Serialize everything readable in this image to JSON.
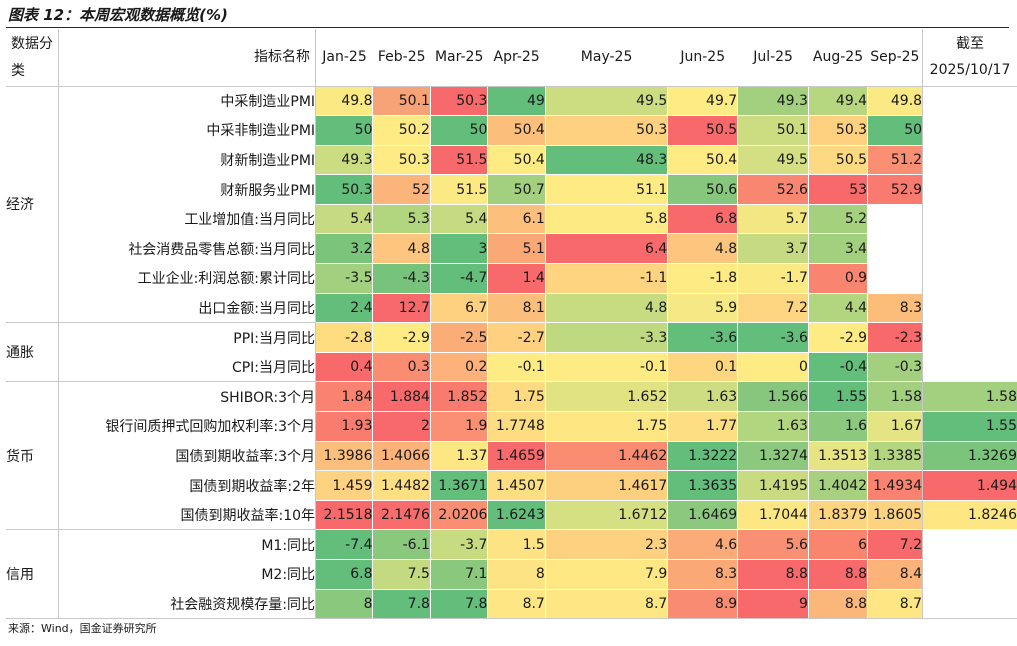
{
  "title": "图表 12：本周宏观数据概览(%)",
  "source": "来源：Wind，国金证券研究所",
  "chart_data": {
    "type": "table",
    "header": {
      "category": "数据分类",
      "indicator": "指标名称",
      "months": [
        "Jan-25",
        "Feb-25",
        "Mar-25",
        "Apr-25",
        "May-25",
        "Jun-25",
        "Jul-25",
        "Aug-25",
        "Sep-25"
      ],
      "latest": "截至 2025/10/17"
    },
    "groups": [
      {
        "name": "经济",
        "rows": [
          {
            "name": "中采制造业PMI",
            "values": [
              "49.8",
              "50.1",
              "50.3",
              "49",
              "49.5",
              "49.7",
              "49.3",
              "49.4",
              "49.8"
            ],
            "latest": "",
            "colors": [
              "#fbe983",
              "#f8a277",
              "#f8696b",
              "#63be7b",
              "#cbdc81",
              "#feeb84",
              "#a2d07f",
              "#b7d680",
              "#fbe983"
            ]
          },
          {
            "name": "中采非制造业PMI",
            "values": [
              "50",
              "50.2",
              "50",
              "50.4",
              "50.3",
              "50.5",
              "50.1",
              "50.3",
              "50"
            ],
            "latest": "",
            "colors": [
              "#63be7b",
              "#feeb84",
              "#63be7b",
              "#fcbf7b",
              "#fdd17f",
              "#f8696b",
              "#cbdc81",
              "#fdd17f",
              "#63be7b"
            ]
          },
          {
            "name": "财新制造业PMI",
            "values": [
              "49.3",
              "50.3",
              "51.5",
              "50.4",
              "48.3",
              "50.4",
              "49.5",
              "50.5",
              "51.2"
            ],
            "latest": "",
            "colors": [
              "#cbdc81",
              "#feeb84",
              "#f8696b",
              "#feeb84",
              "#63be7b",
              "#feeb84",
              "#d3df82",
              "#fdda81",
              "#fa8f73"
            ]
          },
          {
            "name": "财新服务业PMI",
            "values": [
              "50.3",
              "52",
              "51.5",
              "50.7",
              "51.1",
              "50.6",
              "52.6",
              "53",
              "52.9"
            ],
            "latest": "",
            "colors": [
              "#63be7b",
              "#fbb479",
              "#fbe983",
              "#a2d07f",
              "#feeb84",
              "#86c77d",
              "#f98670",
              "#f8696b",
              "#f97a6e"
            ]
          },
          {
            "name": "工业增加值:当月同比",
            "values": [
              "5.4",
              "5.3",
              "5.4",
              "6.1",
              "5.8",
              "6.8",
              "5.7",
              "5.2",
              ""
            ],
            "latest": "",
            "colors": [
              "#c5da81",
              "#b2d580",
              "#c5da81",
              "#fcc07c",
              "#feea83",
              "#f8696b",
              "#f2e783",
              "#a5d17f",
              ""
            ]
          },
          {
            "name": "社会消费品零售总额:当月同比",
            "values": [
              "3.2",
              "4.8",
              "3",
              "5.1",
              "6.4",
              "4.8",
              "3.7",
              "3.4",
              ""
            ],
            "latest": "",
            "colors": [
              "#7ac47c",
              "#fdc57d",
              "#63be7b",
              "#fba877",
              "#f8696b",
              "#fdc57d",
              "#c6da81",
              "#a2d07f",
              ""
            ]
          },
          {
            "name": "工业企业:利润总额:累计同比",
            "values": [
              "-3.5",
              "-4.3",
              "-4.7",
              "1.4",
              "-1.1",
              "-1.8",
              "-1.7",
              "0.9",
              ""
            ],
            "latest": "",
            "colors": [
              "#a2d07f",
              "#78c37c",
              "#63be7b",
              "#f8696b",
              "#fed480",
              "#feeb84",
              "#fbe983",
              "#f98570",
              ""
            ]
          },
          {
            "name": "出口金额:当月同比",
            "values": [
              "2.4",
              "12.7",
              "6.7",
              "8.1",
              "4.8",
              "5.9",
              "7.2",
              "4.4",
              "8.3"
            ],
            "latest": "",
            "colors": [
              "#63be7b",
              "#f8696b",
              "#fdd17f",
              "#fcbf7b",
              "#c7db81",
              "#f6e884",
              "#fed681",
              "#b2d580",
              "#fcbd7a"
            ]
          }
        ]
      },
      {
        "name": "通胀",
        "rows": [
          {
            "name": "PPI:当月同比",
            "values": [
              "-2.8",
              "-2.9",
              "-2.5",
              "-2.7",
              "-3.3",
              "-3.6",
              "-3.6",
              "-2.9",
              "-2.3"
            ],
            "latest": "",
            "colors": [
              "#fedd81",
              "#feeb84",
              "#fbad78",
              "#fed07f",
              "#bfd981",
              "#63be7b",
              "#63be7b",
              "#feeb84",
              "#f8696b"
            ]
          },
          {
            "name": "CPI:当月同比",
            "values": [
              "0.4",
              "0.3",
              "0.2",
              "-0.1",
              "-0.1",
              "0.1",
              "0",
              "-0.4",
              "-0.3"
            ],
            "latest": "",
            "colors": [
              "#f8696b",
              "#fa8c72",
              "#fcb27a",
              "#feeb84",
              "#feeb84",
              "#fed680",
              "#feeb84",
              "#63be7b",
              "#a2d07f"
            ]
          }
        ]
      },
      {
        "name": "货币",
        "rows": [
          {
            "name": "SHIBOR:3个月",
            "values": [
              "1.84",
              "1.884",
              "1.852",
              "1.75",
              "1.652",
              "1.63",
              "1.566",
              "1.55",
              "1.58"
            ],
            "latest": "1.58",
            "colors": [
              "#f98370",
              "#f8696b",
              "#f97b6e",
              "#fedb80",
              "#e1e383",
              "#cfdd82",
              "#86c77d",
              "#63be7b",
              "#a2d07f"
            ],
            "latest_color": "#a2d07f"
          },
          {
            "name": "银行间质押式回购加权利率:3个月",
            "values": [
              "1.93",
              "2",
              "1.9",
              "1.7748",
              "1.75",
              "1.77",
              "1.63",
              "1.6",
              "1.67"
            ],
            "latest": "1.55",
            "colors": [
              "#f97c6f",
              "#f8696b",
              "#fa8f73",
              "#fedc81",
              "#fee683",
              "#fede82",
              "#b2d580",
              "#8cc97e",
              "#e4e483"
            ],
            "latest_color": "#63be7b"
          },
          {
            "name": "国债到期收益率:3个月",
            "values": [
              "1.3986",
              "1.4066",
              "1.37",
              "1.4659",
              "1.4462",
              "1.3222",
              "1.3274",
              "1.3513",
              "1.3385"
            ],
            "latest": "1.3269",
            "colors": [
              "#fcbf7b",
              "#fcb379",
              "#fde783",
              "#f8696b",
              "#fa8c72",
              "#63be7b",
              "#8cc97e",
              "#e6e483",
              "#b5d680"
            ],
            "latest_color": "#7ac47c"
          },
          {
            "name": "国债到期收益率:2年",
            "values": [
              "1.459",
              "1.4482",
              "1.3671",
              "1.4507",
              "1.4617",
              "1.3635",
              "1.4195",
              "1.4042",
              "1.4934"
            ],
            "latest": "1.494",
            "colors": [
              "#fed280",
              "#fee082",
              "#63be7b",
              "#fede82",
              "#fdd080",
              "#63be7b",
              "#c8db81",
              "#a7d17f",
              "#f98270"
            ],
            "latest_color": "#f8696b"
          },
          {
            "name": "国债到期收益率:10年",
            "values": [
              "2.1518",
              "2.1476",
              "2.0206",
              "1.6243",
              "1.6712",
              "1.6469",
              "1.7044",
              "1.8379",
              "1.8605"
            ],
            "latest": "1.8246",
            "colors": [
              "#f8696b",
              "#f86c6c",
              "#fa8e72",
              "#63be7b",
              "#d5e082",
              "#8cc97e",
              "#fde783",
              "#fdd580",
              "#fdd280"
            ],
            "latest_color": "#fee683"
          }
        ]
      },
      {
        "name": "信用",
        "rows": [
          {
            "name": "M1:同比",
            "values": [
              "-7.4",
              "-6.1",
              "-3.7",
              "1.5",
              "2.3",
              "4.6",
              "5.6",
              "6",
              "7.2"
            ],
            "latest": "",
            "colors": [
              "#63be7b",
              "#8ac87e",
              "#c7db81",
              "#fde383",
              "#fdd17f",
              "#fbab78",
              "#fa9073",
              "#f9856f",
              "#f8696b"
            ]
          },
          {
            "name": "M2:同比",
            "values": [
              "6.8",
              "7.5",
              "7.1",
              "8",
              "7.9",
              "8.3",
              "8.8",
              "8.8",
              "8.4"
            ],
            "latest": "",
            "colors": [
              "#63be7b",
              "#c3da81",
              "#8ac87e",
              "#fde383",
              "#fee883",
              "#fba877",
              "#f8696b",
              "#f8696b",
              "#fbb379"
            ]
          },
          {
            "name": "社会融资规模存量:同比",
            "values": [
              "8",
              "7.8",
              "7.8",
              "8.7",
              "8.7",
              "8.9",
              "9",
              "8.8",
              "8.7"
            ],
            "latest": "",
            "colors": [
              "#8ac87e",
              "#63be7b",
              "#63be7b",
              "#fde683",
              "#fde683",
              "#f98b72",
              "#f8696b",
              "#fbb779",
              "#fde683"
            ]
          }
        ]
      }
    ]
  }
}
